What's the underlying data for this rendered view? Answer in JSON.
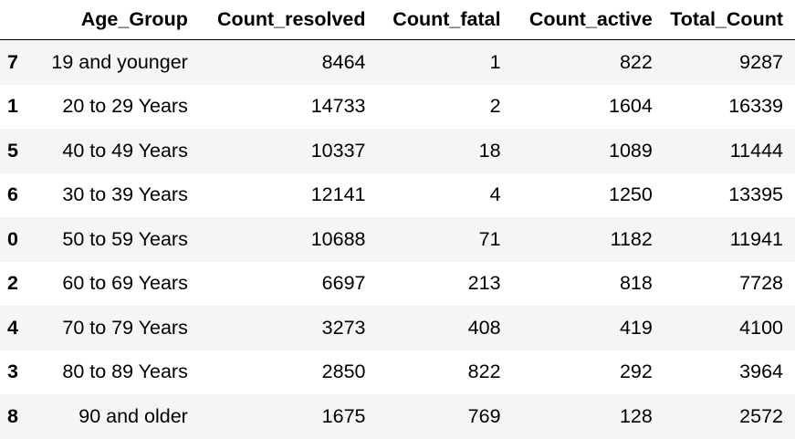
{
  "table": {
    "columns": [
      "",
      "Age_Group",
      "Count_resolved",
      "Count_fatal",
      "Count_active",
      "Total_Count"
    ],
    "rows": [
      {
        "index": "7",
        "cells": [
          "19 and younger",
          "8464",
          "1",
          "822",
          "9287"
        ]
      },
      {
        "index": "1",
        "cells": [
          "20 to 29 Years",
          "14733",
          "2",
          "1604",
          "16339"
        ]
      },
      {
        "index": "5",
        "cells": [
          "40 to 49 Years",
          "10337",
          "18",
          "1089",
          "11444"
        ]
      },
      {
        "index": "6",
        "cells": [
          "30 to 39 Years",
          "12141",
          "4",
          "1250",
          "13395"
        ]
      },
      {
        "index": "0",
        "cells": [
          "50 to 59 Years",
          "10688",
          "71",
          "1182",
          "11941"
        ]
      },
      {
        "index": "2",
        "cells": [
          "60 to 69 Years",
          "6697",
          "213",
          "818",
          "7728"
        ]
      },
      {
        "index": "4",
        "cells": [
          "70 to 79 Years",
          "3273",
          "408",
          "419",
          "4100"
        ]
      },
      {
        "index": "3",
        "cells": [
          "80 to 89 Years",
          "2850",
          "822",
          "292",
          "3964"
        ]
      },
      {
        "index": "8",
        "cells": [
          "90 and older",
          "1675",
          "769",
          "128",
          "2572"
        ]
      }
    ]
  }
}
